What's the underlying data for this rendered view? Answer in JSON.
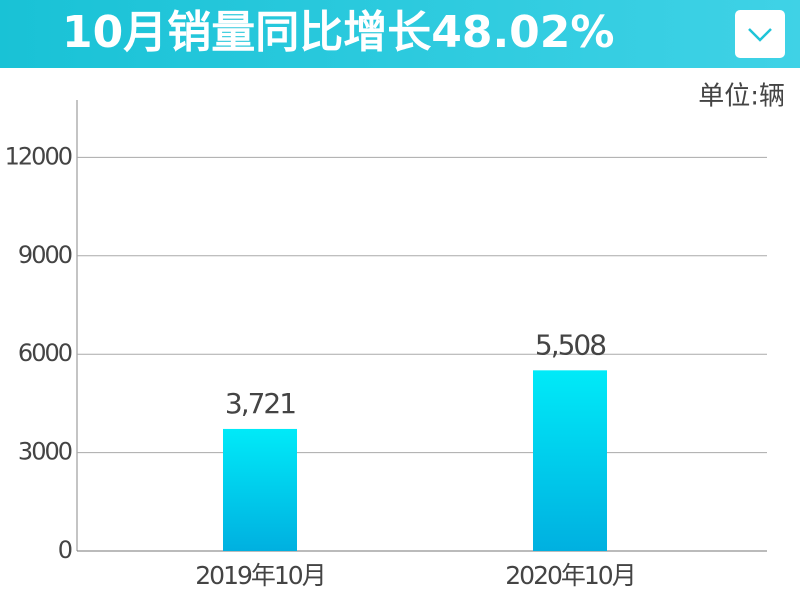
{
  "chart_data": {
    "type": "bar",
    "title": "10月销量同比增长48.02%",
    "unit_label": "单位:辆",
    "categories": [
      "2019年10月",
      "2020年10月"
    ],
    "values": [
      3721,
      5508
    ],
    "value_labels": [
      "3,721",
      "5,508"
    ],
    "colors": [
      "#00eaf8",
      "#00b0e0"
    ],
    "ylim": [
      0,
      13750
    ],
    "yticks": [
      0,
      3000,
      6000,
      9000,
      12000
    ],
    "grid": true
  }
}
